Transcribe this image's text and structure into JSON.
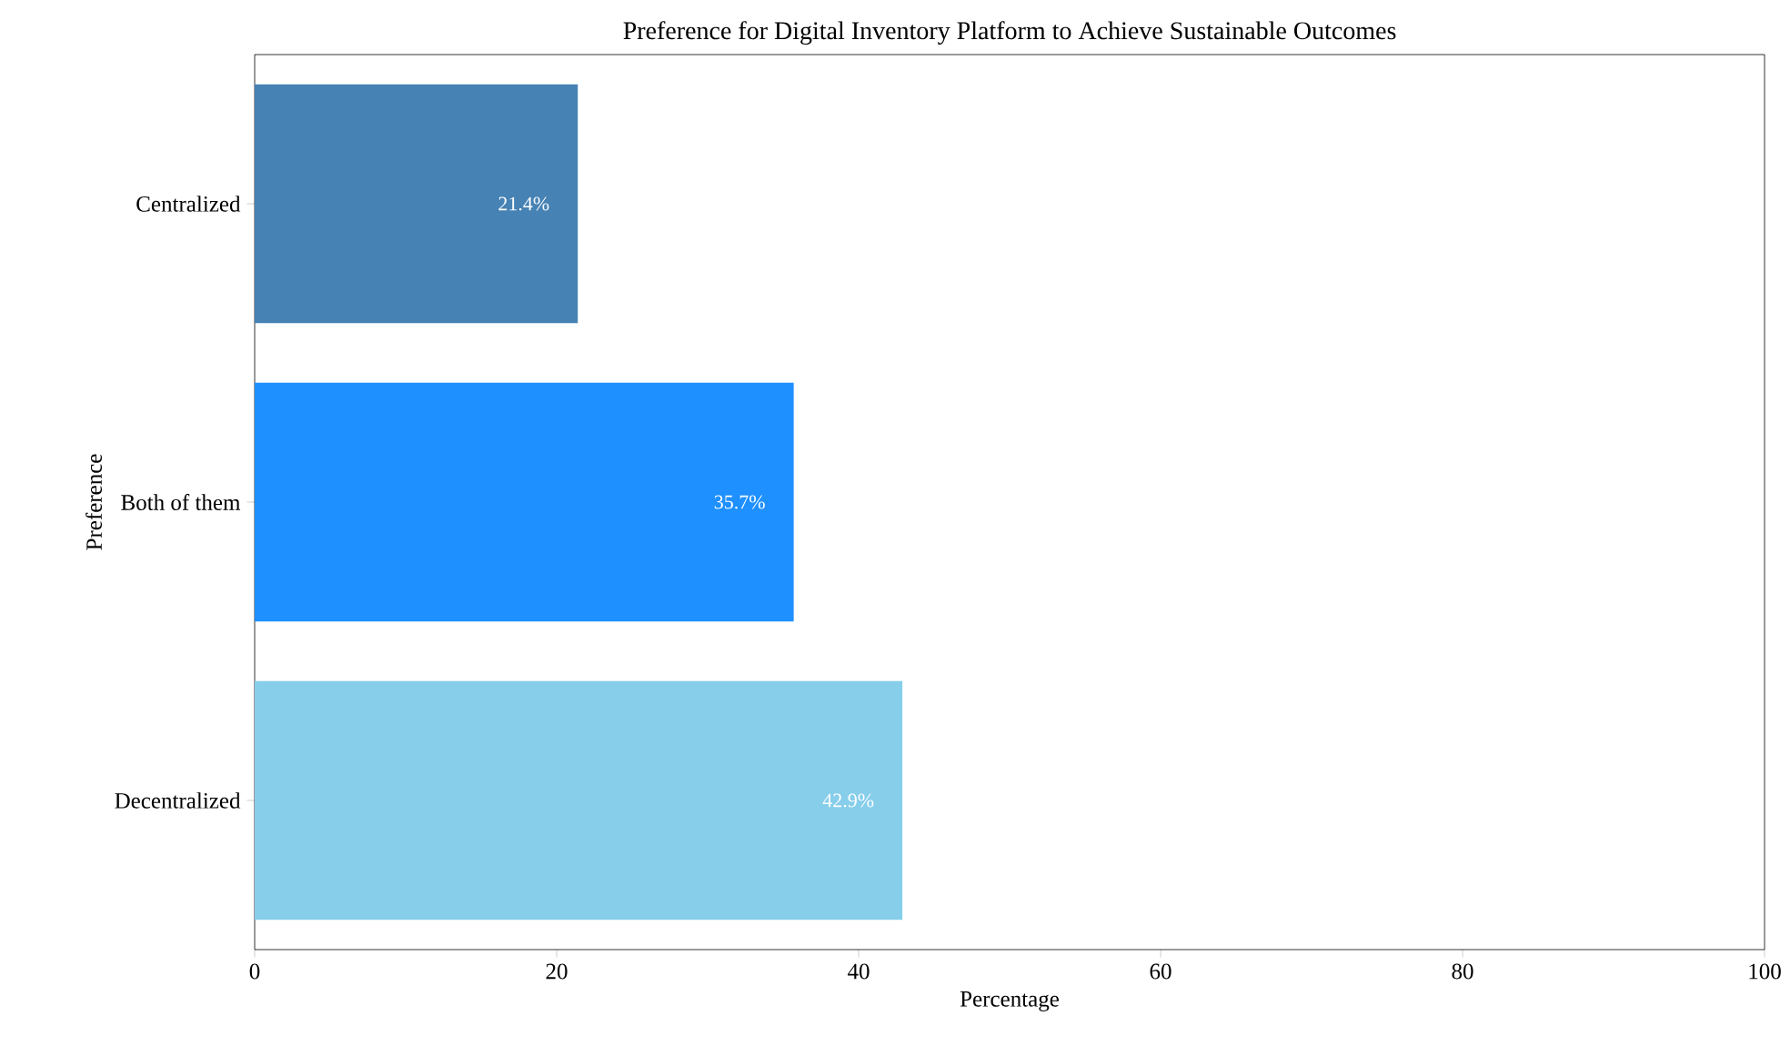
{
  "chart_data": {
    "type": "bar",
    "orientation": "horizontal",
    "title": "Preference for Digital Inventory Platform to Achieve Sustainable Outcomes",
    "xlabel": "Percentage",
    "ylabel": "Preference",
    "categories": [
      "Centralized",
      "Both of them",
      "Decentralized"
    ],
    "values": [
      21.4,
      35.7,
      42.9
    ],
    "colors": [
      "#4682b4",
      "#1e90ff",
      "#87ceeb"
    ],
    "value_labels": [
      "21.4%",
      "35.7%",
      "42.9%"
    ],
    "xlim": [
      0,
      100
    ],
    "xticks": [
      0,
      20,
      40,
      60,
      80,
      100
    ],
    "grid": false
  }
}
